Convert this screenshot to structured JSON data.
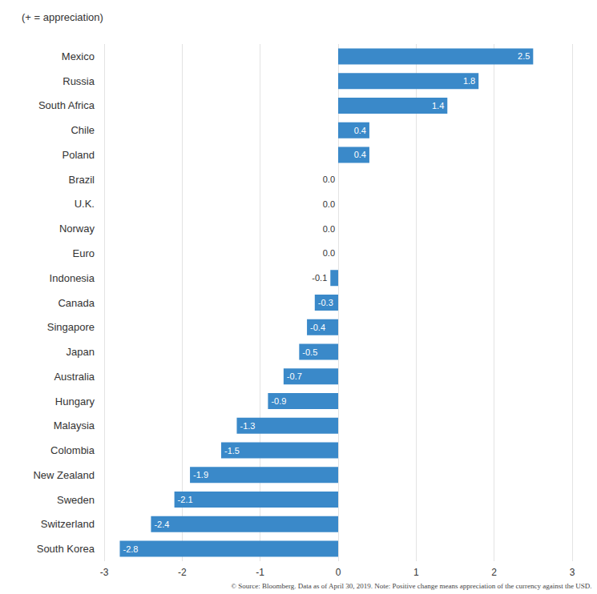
{
  "chart_data": {
    "type": "bar",
    "orientation": "horizontal",
    "title": "(+ = appreciation)",
    "categories": [
      "Mexico",
      "Russia",
      "South Africa",
      "Chile",
      "Poland",
      "Brazil",
      "U.K.",
      "Norway",
      "Euro",
      "Indonesia",
      "Canada",
      "Singapore",
      "Japan",
      "Australia",
      "Hungary",
      "Malaysia",
      "Colombia",
      "New Zealand",
      "Sweden",
      "Switzerland",
      "South Korea"
    ],
    "values": [
      2.5,
      1.8,
      1.4,
      0.4,
      0.4,
      0,
      0,
      0,
      0,
      -0.1,
      -0.3,
      -0.4,
      -0.5,
      -0.7,
      -0.9,
      -1.3,
      -1.5,
      -1.9,
      -2.1,
      -2.4,
      -2.8
    ],
    "value_labels": [
      "2.5",
      "1.8",
      "1.4",
      "0.4",
      "0.4",
      "0.0",
      "0.0",
      "0.0",
      "0.0",
      "-0.1",
      "-0.3",
      "-0.4",
      "-0.5",
      "-0.7",
      "-0.9",
      "-1.3",
      "-1.5",
      "-1.9",
      "-2.1",
      "-2.4",
      "-2.8"
    ],
    "color": "#3a89c9",
    "xlim": [
      -3,
      3
    ],
    "xticks": [
      -3,
      -2,
      -1,
      0,
      1,
      2,
      3
    ],
    "grid": true,
    "data_labels": true,
    "annotations": [
      "© Source: Bloomberg. Data as of April 30, 2019. Note: Positive change means appreciation of the currency against the USD."
    ]
  }
}
